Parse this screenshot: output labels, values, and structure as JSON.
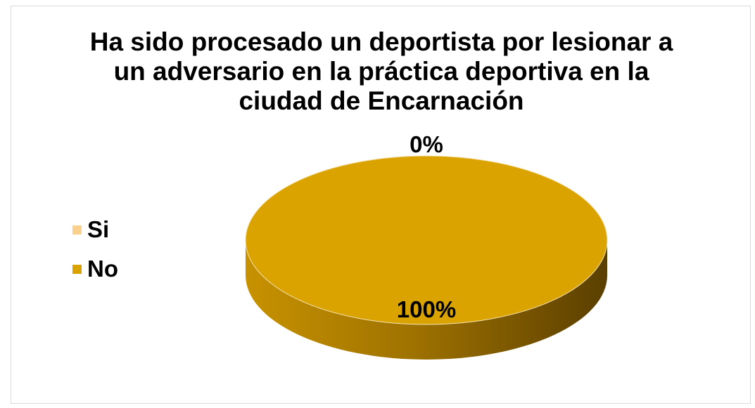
{
  "chart_data": {
    "type": "pie",
    "title": "Ha sido procesado un deportista por lesionar a\nun adversario en la práctica deportiva en la\nciudad de Encarnación",
    "categories": [
      "Si",
      "No"
    ],
    "values": [
      0,
      100
    ],
    "data_labels": [
      "0%",
      "100%"
    ],
    "colors": [
      "#F9D18D",
      "#DAA300"
    ],
    "legend_position": "left",
    "style": "3d"
  }
}
